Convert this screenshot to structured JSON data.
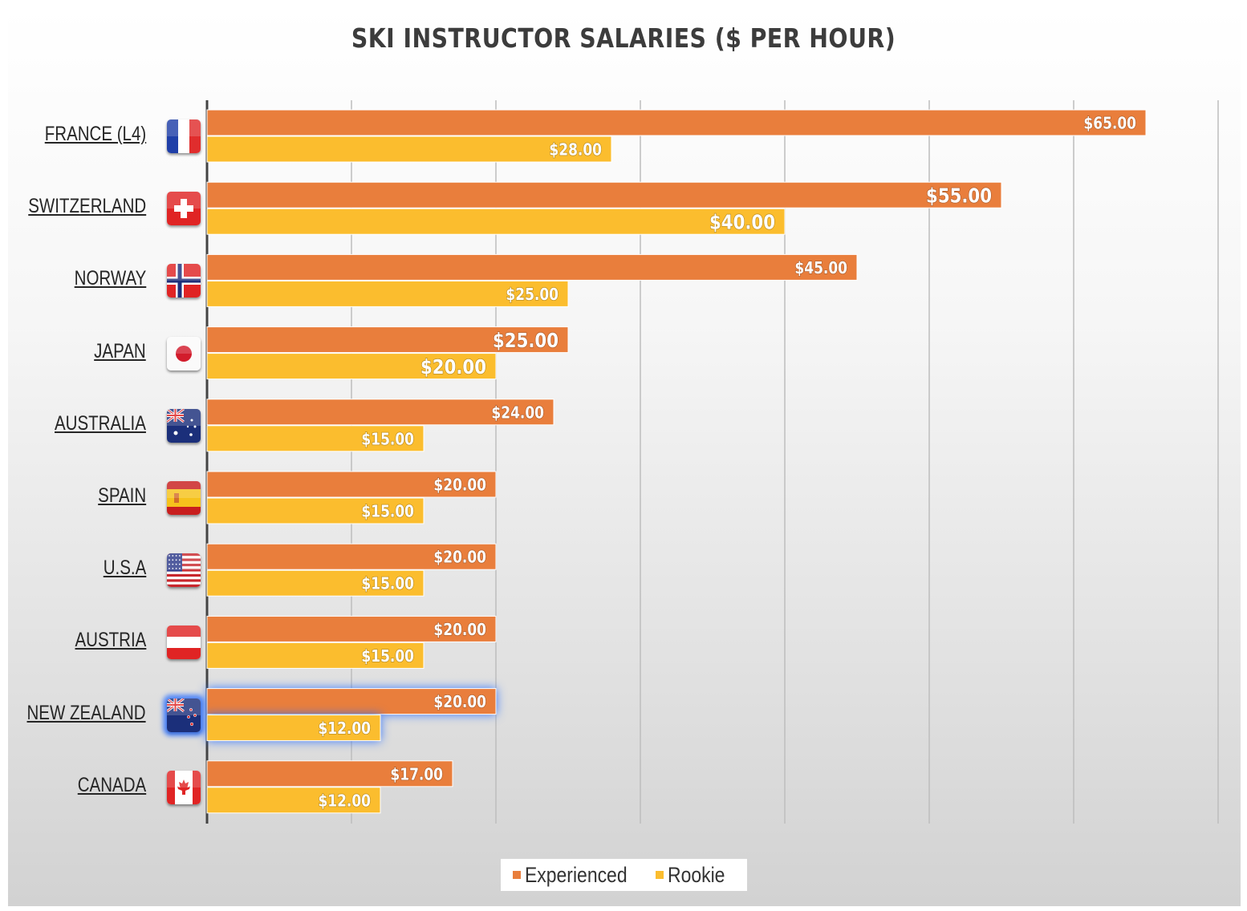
{
  "chart_data": {
    "type": "bar",
    "orientation": "horizontal",
    "title": "SKI INSTRUCTOR SALARIES ($ PER HOUR)",
    "categories": [
      "FRANCE (L4)",
      "SWITZERLAND",
      "NORWAY",
      "JAPAN",
      "AUSTRALIA",
      "SPAIN",
      "U.S.A",
      "AUSTRIA",
      "NEW ZEALAND",
      "CANADA"
    ],
    "flags": [
      "flag-france-icon",
      "flag-switzerland-icon",
      "flag-norway-icon",
      "flag-japan-icon",
      "flag-australia-icon",
      "flag-spain-icon",
      "flag-usa-icon",
      "flag-austria-icon",
      "flag-new-zealand-icon",
      "flag-canada-icon"
    ],
    "series": [
      {
        "name": "Experienced",
        "color": "#E97E3C",
        "values": [
          65,
          55,
          45,
          25,
          24,
          20,
          20,
          20,
          20,
          17
        ]
      },
      {
        "name": "Rookie",
        "color": "#FBBD2E",
        "values": [
          28,
          40,
          25,
          20,
          15,
          15,
          15,
          15,
          12,
          12
        ]
      }
    ],
    "data_labels": [
      [
        "$65.00",
        "$55.00",
        "$45.00",
        "$25.00",
        "$24.00",
        "$20.00",
        "$20.00",
        "$20.00",
        "$20.00",
        "$17.00"
      ],
      [
        "$28.00",
        "$40.00",
        "$25.00",
        "$20.00",
        "$15.00",
        "$15.00",
        "$15.00",
        "$15.00",
        "$12.00",
        "$12.00"
      ]
    ],
    "xlim": [
      0,
      70
    ],
    "grid": true,
    "legend": "bottom-center",
    "highlighted_category": "NEW ZEALAND"
  },
  "legend": {
    "experienced_label": "Experienced",
    "rookie_label": "Rookie"
  }
}
